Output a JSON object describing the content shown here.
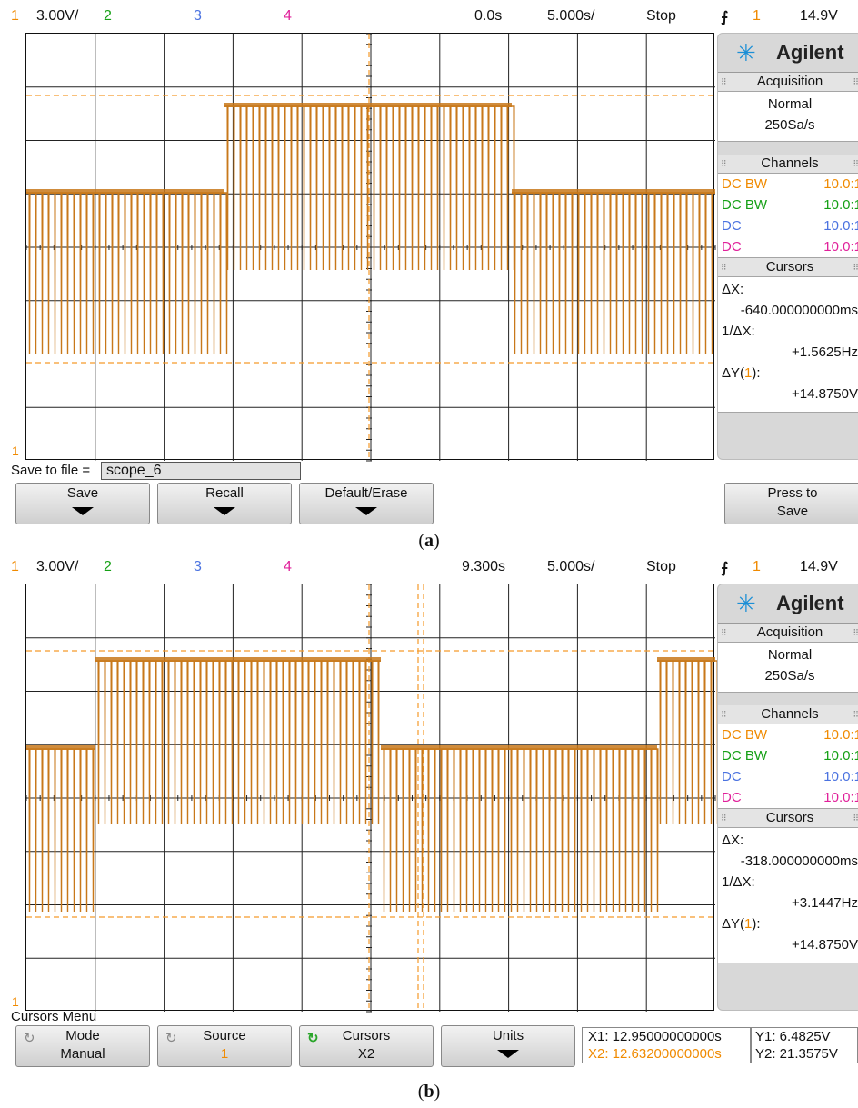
{
  "screens": [
    {
      "top": {
        "ch1": "1",
        "scale": "3.00V/",
        "ch2": "2",
        "ch3": "3",
        "ch4": "4",
        "delay": "0.0s",
        "timebase": "5.000s/",
        "state": "Stop",
        "trig_src": "1",
        "trig_level": "14.9V"
      },
      "panel": {
        "brand": "Agilent",
        "acq_header": "Acquisition",
        "acq_mode": "Normal",
        "acq_rate": "250Sa/s",
        "channels_header": "Channels",
        "channels": [
          {
            "coupling": "DC BW",
            "ratio": "10.0:1",
            "color": "#f08a00"
          },
          {
            "coupling": "DC BW",
            "ratio": "10.0:1",
            "color": "#15a015"
          },
          {
            "coupling": "DC",
            "ratio": "10.0:1",
            "color": "#4a72e0"
          },
          {
            "coupling": "DC",
            "ratio": "10.0:1",
            "color": "#e0209a"
          }
        ],
        "cursors_header": "Cursors",
        "dx_label": "ΔX:",
        "dx": "-640.000000000ms",
        "inv_label": "1/ΔX:",
        "inv": "+1.5625Hz",
        "dy_label": "ΔY(",
        "dy_ch": "1",
        "dy_close": "):",
        "dy": "+14.8750V"
      },
      "bottom": {
        "save_label": "Save to file =",
        "save_value": "scope_6",
        "buttons": [
          "Save",
          "Recall",
          "Default/Erase"
        ],
        "press_l1": "Press to",
        "press_l2": "Save"
      },
      "caption_letter": "a"
    },
    {
      "top": {
        "ch1": "1",
        "scale": "3.00V/",
        "ch2": "2",
        "ch3": "3",
        "ch4": "4",
        "delay": "9.300s",
        "timebase": "5.000s/",
        "state": "Stop",
        "trig_src": "1",
        "trig_level": "14.9V"
      },
      "panel": {
        "brand": "Agilent",
        "acq_header": "Acquisition",
        "acq_mode": "Normal",
        "acq_rate": "250Sa/s",
        "channels_header": "Channels",
        "channels": [
          {
            "coupling": "DC BW",
            "ratio": "10.0:1",
            "color": "#f08a00"
          },
          {
            "coupling": "DC BW",
            "ratio": "10.0:1",
            "color": "#15a015"
          },
          {
            "coupling": "DC",
            "ratio": "10.0:1",
            "color": "#4a72e0"
          },
          {
            "coupling": "DC",
            "ratio": "10.0:1",
            "color": "#e0209a"
          }
        ],
        "cursors_header": "Cursors",
        "dx_label": "ΔX:",
        "dx": "-318.000000000ms",
        "inv_label": "1/ΔX:",
        "inv": "+3.1447Hz",
        "dy_label": "ΔY(",
        "dy_ch": "1",
        "dy_close": "):",
        "dy": "+14.8750V"
      },
      "bottom": {
        "menu_title": "Cursors Menu",
        "mode_l1": "Mode",
        "mode_l2": "Manual",
        "source_l1": "Source",
        "source_l2": "1",
        "cursors_l1": "Cursors",
        "cursors_l2": "X2",
        "units_l1": "Units",
        "x1": "X1: 12.95000000000s",
        "x2": "X2: 12.63200000000s",
        "y1": "Y1: 6.4825V",
        "y2": "Y2: 21.3575V"
      },
      "caption_letter": "b"
    }
  ],
  "colors": {
    "trace": "#c8781a",
    "cursor": "#f59a2a",
    "ch1": "#f08a00",
    "ch2": "#15a015",
    "ch3": "#4a72e0",
    "ch4": "#e0209a"
  }
}
